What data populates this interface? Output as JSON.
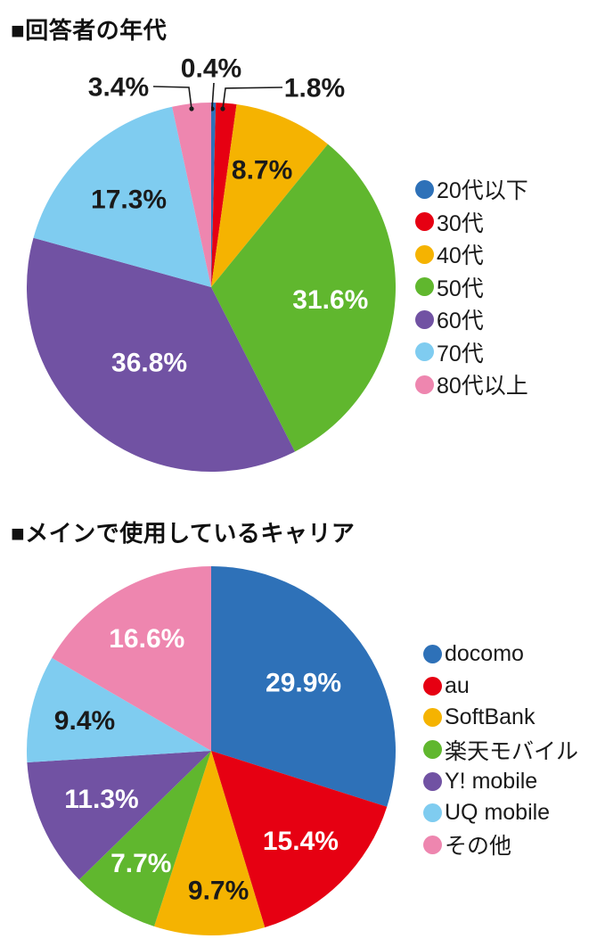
{
  "chart_data": [
    {
      "type": "pie",
      "title": "■回答者の年代",
      "legend_position": "right",
      "start_angle": "12-oclock",
      "direction": "clockwise",
      "labels": [
        "20代以下",
        "30代",
        "40代",
        "50代",
        "60代",
        "70代",
        "80代以上"
      ],
      "values": [
        0.4,
        1.8,
        8.7,
        31.6,
        36.8,
        17.3,
        3.4
      ],
      "value_labels": [
        "0.4%",
        "1.8%",
        "8.7%",
        "31.6%",
        "36.8%",
        "17.3%",
        "3.4%"
      ],
      "colors": [
        "#2e71b8",
        "#e60012",
        "#f5b301",
        "#60b72e",
        "#7152a3",
        "#7fccf0",
        "#ee86af"
      ],
      "value_label_colors": [
        "#1a1a1a",
        "#1a1a1a",
        "#1a1a1a",
        "#ffffff",
        "#ffffff",
        "#1a1a1a",
        "#1a1a1a"
      ]
    },
    {
      "type": "pie",
      "title": "■メインで使用しているキャリア",
      "legend_position": "right",
      "start_angle": "12-oclock",
      "direction": "clockwise",
      "labels": [
        "docomo",
        "au",
        "SoftBank",
        "楽天モバイル",
        "Y! mobile",
        "UQ mobile",
        "その他"
      ],
      "values": [
        29.9,
        15.4,
        9.7,
        7.7,
        11.3,
        9.4,
        16.6
      ],
      "value_labels": [
        "29.9%",
        "15.4%",
        "9.7%",
        "7.7%",
        "11.3%",
        "9.4%",
        "16.6%"
      ],
      "colors": [
        "#2e71b8",
        "#e60012",
        "#f5b301",
        "#60b72e",
        "#7152a3",
        "#7fccf0",
        "#ee86af"
      ],
      "value_label_colors": [
        "#ffffff",
        "#ffffff",
        "#1a1a1a",
        "#ffffff",
        "#ffffff",
        "#1a1a1a",
        "#ffffff"
      ]
    }
  ]
}
